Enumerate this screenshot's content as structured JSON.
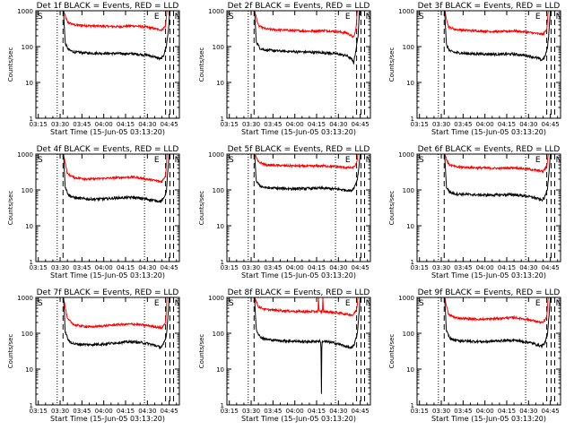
{
  "chart_data": {
    "type": "line",
    "x_axis": {
      "label": "Start Time (15-Jun-05 03:13:20)",
      "tick_labels": [
        "03:15",
        "03:30",
        "03:45",
        "04:00",
        "04:15",
        "04:30",
        "04:45"
      ],
      "tick_minutes": [
        195,
        210,
        225,
        240,
        255,
        270,
        285
      ],
      "range_minutes": [
        193.33,
        292
      ]
    },
    "y_axis": {
      "label": "Counts/sec",
      "scale": "log",
      "range": [
        1,
        1000
      ],
      "tick_labels": [
        "1",
        "10",
        "100",
        "1000"
      ],
      "tick_values": [
        1,
        10,
        100,
        1000
      ]
    },
    "series_colors": {
      "events": "#000000",
      "lld": "#ff0000"
    },
    "panels": [
      {
        "title": "Det 1f BLACK = Events, RED = LLD",
        "markers": {
          "S": 193.33,
          "E": 276.5,
          "N": 290.5
        },
        "dotted_lines": [
          208,
          268
        ],
        "dashed_lines": [
          212,
          282.5,
          285.5,
          288
        ],
        "data_start": 212.3,
        "data_end": 288,
        "black_points": [
          [
            212.3,
            1000
          ],
          [
            213.5,
            120
          ],
          [
            216,
            80
          ],
          [
            220,
            70
          ],
          [
            230,
            66
          ],
          [
            240,
            65
          ],
          [
            250,
            64
          ],
          [
            260,
            63
          ],
          [
            270,
            58
          ],
          [
            276,
            50
          ],
          [
            279,
            45
          ],
          [
            281,
            55
          ],
          [
            283,
            100
          ],
          [
            284.5,
            300
          ],
          [
            285.5,
            1000
          ]
        ],
        "red_points": [
          [
            212.3,
            1000
          ],
          [
            215,
            480
          ],
          [
            220,
            400
          ],
          [
            230,
            380
          ],
          [
            240,
            370
          ],
          [
            250,
            360
          ],
          [
            260,
            380
          ],
          [
            270,
            350
          ],
          [
            276,
            310
          ],
          [
            280,
            290
          ],
          [
            282.5,
            380
          ],
          [
            283.5,
            1000
          ]
        ]
      },
      {
        "title": "Det 2f BLACK = Events, RED = LLD",
        "markers": {
          "S": 193.33,
          "E": 276.5,
          "N": 290.5
        },
        "dotted_lines": [
          208,
          268
        ],
        "dashed_lines": [
          212,
          282.5,
          285.5,
          288
        ],
        "data_start": 212.3,
        "data_end": 288,
        "black_points": [
          [
            212.3,
            1000
          ],
          [
            213.5,
            140
          ],
          [
            216,
            90
          ],
          [
            220,
            80
          ],
          [
            230,
            75
          ],
          [
            240,
            72
          ],
          [
            250,
            70
          ],
          [
            260,
            68
          ],
          [
            270,
            62
          ],
          [
            276,
            55
          ],
          [
            279,
            45
          ],
          [
            280.5,
            35
          ],
          [
            282,
            80
          ],
          [
            283.5,
            200
          ],
          [
            284.5,
            1000
          ]
        ],
        "red_points": [
          [
            212.3,
            1000
          ],
          [
            215,
            380
          ],
          [
            220,
            310
          ],
          [
            230,
            290
          ],
          [
            240,
            280
          ],
          [
            250,
            270
          ],
          [
            260,
            280
          ],
          [
            270,
            260
          ],
          [
            276,
            240
          ],
          [
            279,
            200
          ],
          [
            280.5,
            180
          ],
          [
            282,
            300
          ],
          [
            283,
            1000
          ]
        ]
      },
      {
        "title": "Det 3f BLACK = Events, RED = LLD",
        "markers": {
          "S": 193.33,
          "E": 276.5,
          "N": 290.5
        },
        "dotted_lines": [
          208,
          268
        ],
        "dashed_lines": [
          212,
          282.5,
          285.5,
          288
        ],
        "data_start": 212.3,
        "data_end": 288,
        "black_points": [
          [
            212.3,
            1000
          ],
          [
            213.5,
            110
          ],
          [
            216,
            75
          ],
          [
            220,
            68
          ],
          [
            230,
            63
          ],
          [
            240,
            62
          ],
          [
            250,
            61
          ],
          [
            260,
            62
          ],
          [
            270,
            55
          ],
          [
            276,
            48
          ],
          [
            279,
            42
          ],
          [
            281,
            50
          ],
          [
            283,
            90
          ],
          [
            284,
            250
          ],
          [
            285,
            1000
          ]
        ],
        "red_points": [
          [
            212.3,
            1000
          ],
          [
            215,
            350
          ],
          [
            220,
            300
          ],
          [
            230,
            280
          ],
          [
            240,
            270
          ],
          [
            250,
            260
          ],
          [
            260,
            275
          ],
          [
            270,
            250
          ],
          [
            276,
            230
          ],
          [
            280,
            220
          ],
          [
            282.5,
            300
          ],
          [
            283.5,
            1000
          ]
        ]
      },
      {
        "title": "Det 4f BLACK = Events, RED = LLD",
        "markers": {
          "S": 193.33,
          "E": 276.5,
          "N": 290.5
        },
        "dotted_lines": [
          208,
          268
        ],
        "dashed_lines": [
          212,
          282.5,
          285.5,
          288
        ],
        "data_start": 212.3,
        "data_end": 288,
        "black_points": [
          [
            212.3,
            1000
          ],
          [
            213.5,
            120
          ],
          [
            216,
            70
          ],
          [
            220,
            60
          ],
          [
            230,
            55
          ],
          [
            240,
            56
          ],
          [
            250,
            60
          ],
          [
            260,
            62
          ],
          [
            270,
            55
          ],
          [
            276,
            50
          ],
          [
            279,
            48
          ],
          [
            281,
            55
          ],
          [
            283,
            90
          ],
          [
            284,
            300
          ],
          [
            285,
            1000
          ]
        ],
        "red_points": [
          [
            212.3,
            1000
          ],
          [
            215,
            280
          ],
          [
            220,
            220
          ],
          [
            230,
            200
          ],
          [
            240,
            210
          ],
          [
            250,
            220
          ],
          [
            260,
            230
          ],
          [
            270,
            200
          ],
          [
            276,
            180
          ],
          [
            280,
            170
          ],
          [
            282.5,
            250
          ],
          [
            283.5,
            1000
          ]
        ]
      },
      {
        "title": "Det 5f BLACK = Events, RED = LLD",
        "markers": {
          "S": 193.33,
          "E": 276.5,
          "N": 290.5
        },
        "dotted_lines": [
          208,
          268
        ],
        "dashed_lines": [
          212,
          282.5,
          285.5,
          288
        ],
        "data_start": 212.3,
        "data_end": 288,
        "black_points": [
          [
            212.3,
            1000
          ],
          [
            213.5,
            180
          ],
          [
            216,
            130
          ],
          [
            220,
            115
          ],
          [
            230,
            110
          ],
          [
            240,
            108
          ],
          [
            250,
            110
          ],
          [
            260,
            112
          ],
          [
            270,
            105
          ],
          [
            276,
            98
          ],
          [
            279,
            95
          ],
          [
            281,
            120
          ],
          [
            283,
            200
          ],
          [
            284,
            400
          ],
          [
            285,
            1000
          ]
        ],
        "red_points": [
          [
            212.3,
            1000
          ],
          [
            215,
            600
          ],
          [
            220,
            500
          ],
          [
            230,
            480
          ],
          [
            240,
            470
          ],
          [
            250,
            460
          ],
          [
            260,
            470
          ],
          [
            270,
            440
          ],
          [
            276,
            420
          ],
          [
            280,
            410
          ],
          [
            282.5,
            550
          ],
          [
            283.5,
            1000
          ]
        ]
      },
      {
        "title": "Det 6f BLACK = Events, RED = LLD",
        "markers": {
          "S": 193.33,
          "E": 276.5,
          "N": 290.5
        },
        "dotted_lines": [
          208,
          268
        ],
        "dashed_lines": [
          212,
          282.5,
          285.5,
          288
        ],
        "data_start": 212.3,
        "data_end": 288,
        "black_points": [
          [
            212.3,
            1000
          ],
          [
            213.5,
            120
          ],
          [
            216,
            85
          ],
          [
            220,
            78
          ],
          [
            230,
            74
          ],
          [
            240,
            72
          ],
          [
            250,
            73
          ],
          [
            260,
            74
          ],
          [
            270,
            66
          ],
          [
            276,
            58
          ],
          [
            279,
            52
          ],
          [
            281,
            60
          ],
          [
            283,
            110
          ],
          [
            284,
            300
          ],
          [
            285,
            1000
          ]
        ],
        "red_points": [
          [
            212.3,
            1000
          ],
          [
            215,
            520
          ],
          [
            220,
            440
          ],
          [
            230,
            420
          ],
          [
            240,
            410
          ],
          [
            250,
            400
          ],
          [
            260,
            420
          ],
          [
            270,
            380
          ],
          [
            276,
            350
          ],
          [
            280,
            330
          ],
          [
            282.5,
            450
          ],
          [
            283.5,
            1000
          ]
        ]
      },
      {
        "title": "Det 7f BLACK = Events, RED = LLD",
        "markers": {
          "S": 193.33,
          "E": 276.5,
          "N": 290.5
        },
        "dotted_lines": [
          208,
          268
        ],
        "dashed_lines": [
          212,
          282.5,
          285.5,
          288
        ],
        "data_start": 212.3,
        "data_end": 288,
        "black_points": [
          [
            212.3,
            1000
          ],
          [
            213.5,
            110
          ],
          [
            216,
            60
          ],
          [
            220,
            50
          ],
          [
            230,
            48
          ],
          [
            240,
            50
          ],
          [
            250,
            55
          ],
          [
            260,
            58
          ],
          [
            270,
            52
          ],
          [
            276,
            45
          ],
          [
            279,
            40
          ],
          [
            281,
            48
          ],
          [
            283,
            80
          ],
          [
            284,
            250
          ],
          [
            285,
            1000
          ]
        ],
        "red_points": [
          [
            212.3,
            1000
          ],
          [
            215,
            250
          ],
          [
            220,
            170
          ],
          [
            230,
            150
          ],
          [
            240,
            160
          ],
          [
            250,
            175
          ],
          [
            260,
            180
          ],
          [
            270,
            165
          ],
          [
            276,
            150
          ],
          [
            280,
            140
          ],
          [
            282.5,
            200
          ],
          [
            283.5,
            1000
          ]
        ]
      },
      {
        "title": "Det 8f BLACK = Events, RED = LLD",
        "markers": {
          "S": 193.33,
          "E": 276.5,
          "N": 290.5
        },
        "dotted_lines": [
          208,
          268
        ],
        "dashed_lines": [
          212,
          282.5,
          285.5,
          288
        ],
        "data_start": 212.3,
        "data_end": 288,
        "black_points": [
          [
            212.3,
            1000
          ],
          [
            213.5,
            130
          ],
          [
            216,
            80
          ],
          [
            220,
            68
          ],
          [
            230,
            62
          ],
          [
            240,
            60
          ],
          [
            250,
            58
          ],
          [
            255,
            60
          ],
          [
            258,
            60
          ],
          [
            258.3,
            2
          ],
          [
            258.6,
            60
          ],
          [
            265,
            56
          ],
          [
            270,
            50
          ],
          [
            276,
            42
          ],
          [
            279,
            38
          ],
          [
            281,
            50
          ],
          [
            283,
            100
          ],
          [
            284,
            300
          ],
          [
            285,
            1000
          ]
        ],
        "red_points": [
          [
            212.3,
            1000
          ],
          [
            215,
            550
          ],
          [
            220,
            460
          ],
          [
            230,
            430
          ],
          [
            240,
            410
          ],
          [
            250,
            400
          ],
          [
            256,
            410
          ],
          [
            256.3,
            1000
          ],
          [
            256.7,
            400
          ],
          [
            259,
            400
          ],
          [
            259.3,
            1000
          ],
          [
            259.7,
            400
          ],
          [
            265,
            390
          ],
          [
            270,
            370
          ],
          [
            276,
            340
          ],
          [
            280,
            320
          ],
          [
            282.5,
            450
          ],
          [
            283.5,
            1000
          ]
        ]
      },
      {
        "title": "Det 9f BLACK = Events, RED = LLD",
        "markers": {
          "S": 193.33,
          "E": 276.5,
          "N": 290.5
        },
        "dotted_lines": [
          208,
          268
        ],
        "dashed_lines": [
          212,
          282.5,
          285.5,
          288
        ],
        "data_start": 212.3,
        "data_end": 288,
        "black_points": [
          [
            212.3,
            1000
          ],
          [
            213.5,
            115
          ],
          [
            216,
            72
          ],
          [
            220,
            63
          ],
          [
            230,
            60
          ],
          [
            240,
            58
          ],
          [
            250,
            62
          ],
          [
            260,
            64
          ],
          [
            270,
            56
          ],
          [
            276,
            48
          ],
          [
            279,
            44
          ],
          [
            281,
            52
          ],
          [
            283,
            90
          ],
          [
            284,
            280
          ],
          [
            285,
            1000
          ]
        ],
        "red_points": [
          [
            212.3,
            1000
          ],
          [
            215,
            330
          ],
          [
            220,
            270
          ],
          [
            230,
            250
          ],
          [
            240,
            245
          ],
          [
            250,
            260
          ],
          [
            260,
            275
          ],
          [
            270,
            240
          ],
          [
            276,
            210
          ],
          [
            280,
            195
          ],
          [
            282.5,
            280
          ],
          [
            283.5,
            1000
          ]
        ]
      }
    ]
  }
}
